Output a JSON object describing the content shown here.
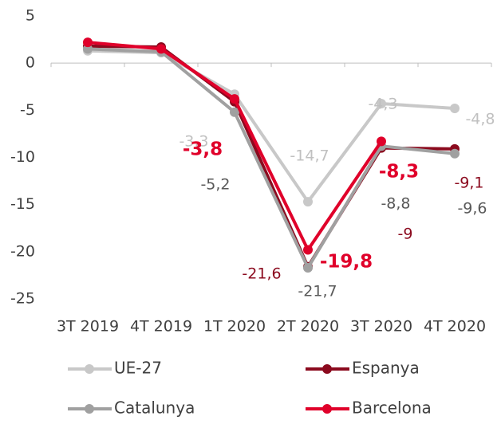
{
  "chart_data": {
    "type": "line",
    "categories": [
      "3T 2019",
      "4T 2019",
      "1T 2020",
      "2T 2020",
      "3T 2020",
      "4T 2020"
    ],
    "ylim": [
      5,
      -25
    ],
    "yticks": [
      5,
      0,
      -5,
      -10,
      -15,
      -20,
      -25
    ],
    "series": [
      {
        "name": "UE-27",
        "color": "#c8c8c8",
        "values": [
          1.3,
          1.1,
          -3.3,
          -14.7,
          -4.3,
          -4.8
        ],
        "value_labels": [
          null,
          null,
          "-3,3",
          "-14,7",
          "-4,3",
          "-4,8"
        ]
      },
      {
        "name": "Espanya",
        "color": "#8b0a1e",
        "values": [
          1.8,
          1.7,
          -4.1,
          -21.6,
          -9,
          -9.1
        ],
        "value_labels": [
          null,
          null,
          null,
          "-21,6",
          "-9",
          "-9,1"
        ]
      },
      {
        "name": "Catalunya",
        "color": "#a0a0a0",
        "values": [
          1.5,
          1.2,
          -5.2,
          -21.7,
          -8.8,
          -9.6
        ],
        "value_labels": [
          null,
          null,
          "-5,2",
          "-21,7",
          "-8,8",
          "-9,6"
        ]
      },
      {
        "name": "Barcelona",
        "color": "#e0002a",
        "values": [
          2.2,
          1.5,
          -3.8,
          -19.8,
          -8.3,
          null
        ],
        "value_labels": [
          null,
          null,
          "-3,8",
          "-19,8",
          "-8,3",
          null
        ]
      }
    ]
  }
}
